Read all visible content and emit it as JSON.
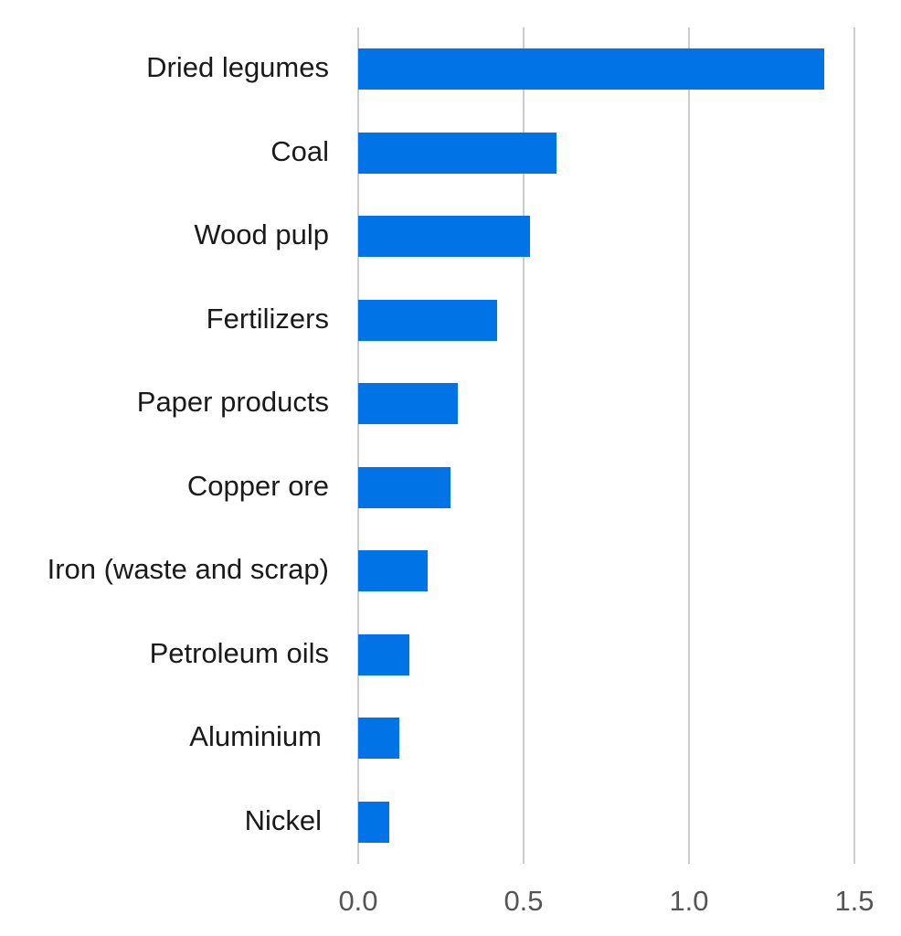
{
  "chart_data": {
    "type": "bar",
    "orientation": "horizontal",
    "title": "",
    "xlabel": "",
    "ylabel": "",
    "categories": [
      "Dried legumes",
      "Coal",
      "Wood pulp",
      "Fertilizers",
      "Paper products",
      "Copper ore",
      "Iron (waste and scrap)",
      "Petroleum oils",
      "Aluminium",
      "Nickel"
    ],
    "values": [
      1.41,
      0.6,
      0.52,
      0.42,
      0.3,
      0.28,
      0.21,
      0.155,
      0.125,
      0.095
    ],
    "xlim": [
      0,
      1.5
    ],
    "xticks": [
      "0.0",
      "0.5",
      "1.0",
      "1.5"
    ],
    "grid": "vertical",
    "legend": null,
    "bar_color": "#0073e6"
  }
}
